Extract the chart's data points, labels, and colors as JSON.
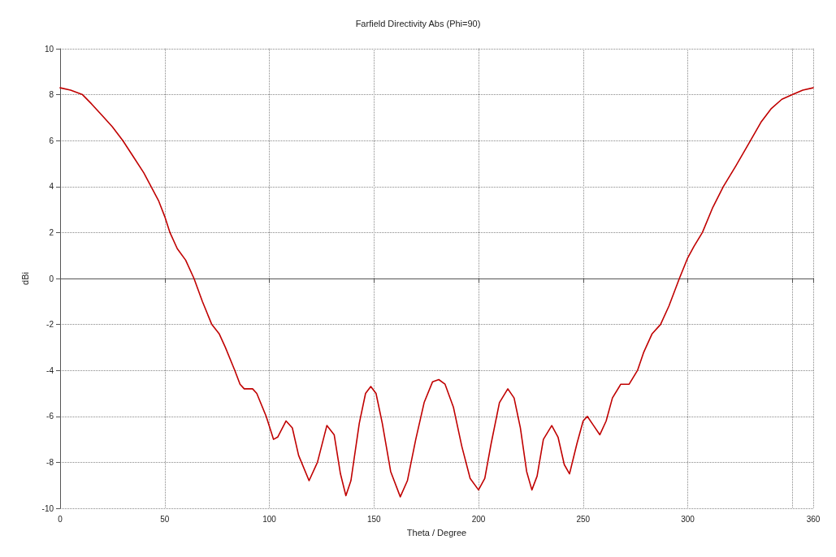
{
  "chart_data": {
    "type": "line",
    "title": "Farfield Directivity Abs (Phi=90)",
    "xlabel": "Theta / Degree",
    "ylabel": "dBi",
    "x": [
      0,
      5,
      10.7,
      15,
      20,
      25,
      30,
      35,
      40,
      43.5,
      47,
      50,
      52.5,
      56,
      60,
      64,
      68,
      72.5,
      76,
      79,
      83.5,
      86,
      88,
      92,
      94,
      98.5,
      102,
      104,
      108,
      111,
      114,
      119,
      123,
      127.5,
      131,
      134,
      136.6,
      139,
      143,
      146,
      148.5,
      151,
      154,
      158,
      162.6,
      166,
      170,
      174,
      178,
      181,
      184,
      188,
      192,
      196,
      200,
      203,
      206,
      210,
      214,
      217,
      220,
      223,
      225.5,
      228,
      231,
      235,
      238,
      241,
      243.5,
      247,
      250,
      252,
      255,
      258,
      261,
      264,
      268,
      272,
      276,
      279,
      283,
      287,
      291,
      296,
      300,
      303,
      307,
      312,
      317,
      323,
      330,
      335,
      340,
      345,
      350,
      355,
      360
    ],
    "series": [
      {
        "color": "#c00000",
        "values": [
          8.3,
          8.2,
          8,
          7.6,
          7.1,
          6.6,
          6,
          5.3,
          4.6,
          4,
          3.4,
          2.7,
          2,
          1.3,
          0.8,
          0,
          -1,
          -2,
          -2.4,
          -3,
          -4,
          -4.6,
          -4.8,
          -4.8,
          -5,
          -6,
          -7,
          -6.9,
          -6.2,
          -6.5,
          -7.7,
          -8.8,
          -8,
          -6.4,
          -6.8,
          -8.5,
          -9.45,
          -8.8,
          -6.3,
          -5,
          -4.7,
          -5,
          -6.3,
          -8.4,
          -9.5,
          -8.8,
          -7,
          -5.4,
          -4.5,
          -4.4,
          -4.6,
          -5.6,
          -7.3,
          -8.7,
          -9.2,
          -8.7,
          -7.2,
          -5.4,
          -4.8,
          -5.2,
          -6.5,
          -8.4,
          -9.2,
          -8.6,
          -7,
          -6.4,
          -6.9,
          -8.1,
          -8.5,
          -7.2,
          -6.2,
          -6,
          -6.4,
          -6.8,
          -6.2,
          -5.2,
          -4.6,
          -4.6,
          -4,
          -3.2,
          -2.4,
          -2,
          -1.2,
          0,
          0.9,
          1.4,
          2,
          3.1,
          4,
          4.9,
          6,
          6.8,
          7.4,
          7.8,
          8,
          8.2,
          8.3
        ]
      }
    ],
    "xlim": [
      0,
      360
    ],
    "xticks": [
      0,
      50,
      100,
      150,
      200,
      250,
      300,
      {
        "value": 350,
        "label": null
      },
      360
    ],
    "ylim": [
      -10,
      10
    ],
    "yticks": [
      -10,
      -8,
      -6,
      -4,
      -2,
      0,
      2,
      4,
      6,
      8,
      10
    ],
    "grid": true,
    "marker": "none",
    "line_style": "solid"
  }
}
